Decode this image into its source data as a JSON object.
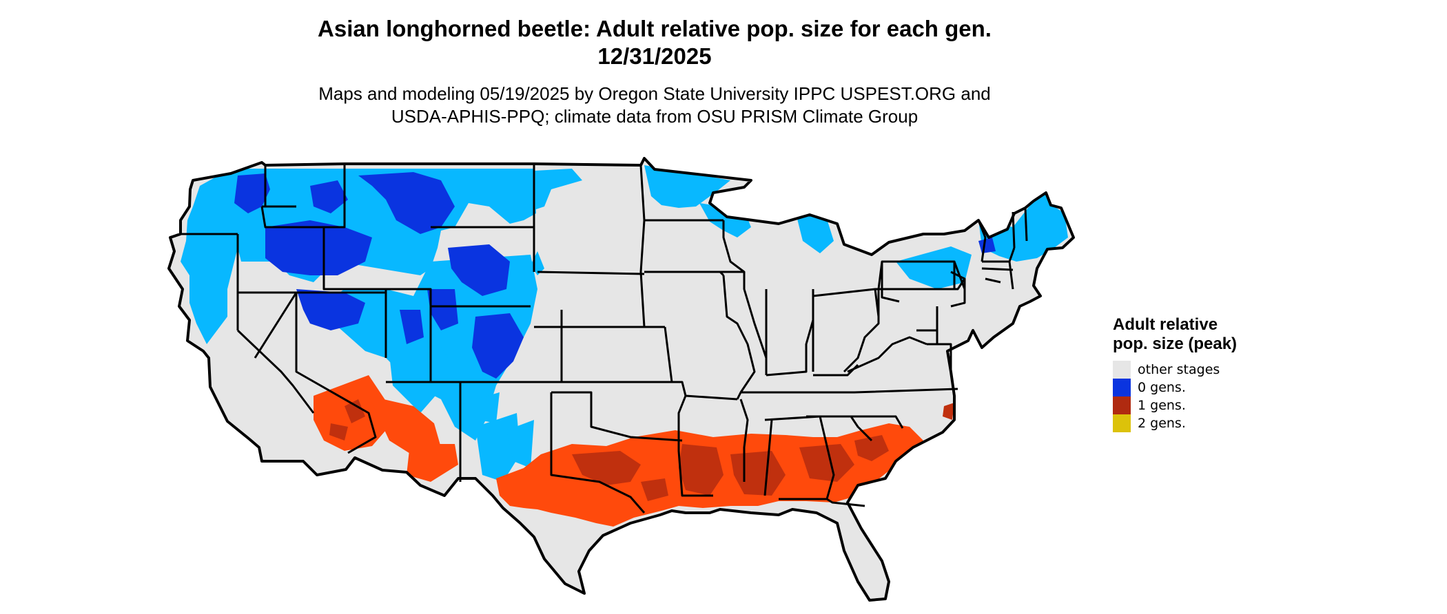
{
  "header": {
    "title_line1": "Asian longhorned beetle: Adult relative pop. size for each gen.",
    "title_line2": "12/31/2025",
    "subtitle_line1": "Maps and modeling 05/19/2025 by Oregon State University IPPC USPEST.ORG and",
    "subtitle_line2": "USDA-APHIS-PPQ; climate data from OSU PRISM Climate Group"
  },
  "legend": {
    "title": "Adult relative pop. size (peak)",
    "items": [
      {
        "label": "other stages",
        "color": "#e6e6e6"
      },
      {
        "label": "0 gens.",
        "color": "#0a34e0"
      },
      {
        "label": "1 gens.",
        "color": "#b02a10"
      },
      {
        "label": "2 gens.",
        "color": "#dcc20a"
      }
    ]
  },
  "map": {
    "background_color": "#e6e6e6",
    "border_color": "#000000",
    "cold_zone_light": "#08b8ff",
    "cold_zone_dark": "#0a34e0",
    "warm_zone_bright": "#ff4a0c",
    "warm_zone_dark": "#c0300e"
  }
}
